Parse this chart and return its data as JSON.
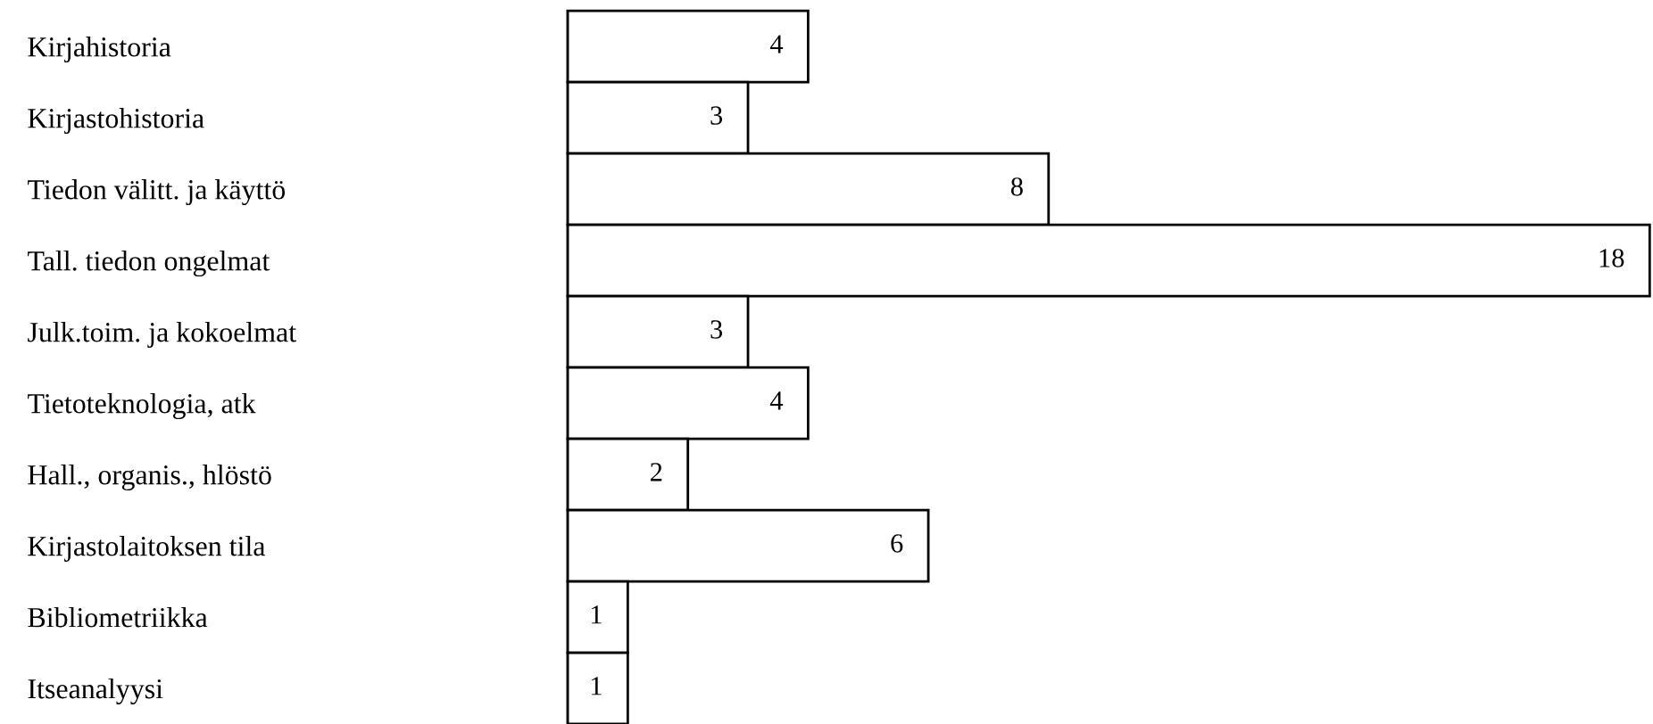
{
  "chart_data": {
    "type": "bar",
    "orientation": "horizontal",
    "categories": [
      "Kirjahistoria",
      "Kirjastohistoria",
      "Tiedon välitt. ja käyttö",
      "Tall. tiedon ongelmat",
      "Julk.toim. ja kokoelmat",
      "Tietoteknologia, atk",
      "Hall., organis., hlöstö",
      "Kirjastolaitoksen tila",
      "Bibliometriikka",
      "Itseanalyysi"
    ],
    "values": [
      4,
      3,
      8,
      18,
      3,
      4,
      2,
      6,
      1,
      1
    ],
    "color": "#ffffff",
    "data_labels": true,
    "grid": false,
    "legend": false,
    "tick_labels": "y"
  }
}
